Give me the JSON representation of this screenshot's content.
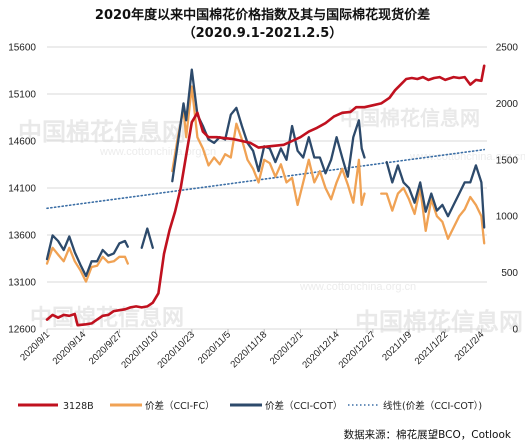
{
  "title_line1": "2020年度以来中国棉花价格指数及其与国际棉花现货价差",
  "title_line2": "（2020.9.1-2021.2.5）",
  "source_text": "数据来源：棉花展望BCO，Cotlook",
  "watermark": {
    "main": "中国棉花信息网",
    "url": "www.cottonchina.org.cn"
  },
  "colors": {
    "s3128b": "#c0111f",
    "cci_fc": "#f0a254",
    "cci_cot": "#2d4a6b",
    "trend": "#3b6ea5",
    "grid": "#d9d9d9"
  },
  "chart_data": {
    "type": "line",
    "x_tick_labels": [
      "2020/9/1",
      "2020/9/14",
      "2020/9/27",
      "2020/10/10",
      "2020/10/23",
      "2020/11/5",
      "2020/11/18",
      "2020/12/1",
      "2020/12/14",
      "2020/12/27",
      "2021/1/9",
      "2021/1/22",
      "2021/2/4"
    ],
    "x_tick_dates": [
      "2020-09-01",
      "2020-09-14",
      "2020-09-27",
      "2020-10-10",
      "2020-10-23",
      "2020-11-05",
      "2020-11-18",
      "2020-12-01",
      "2020-12-14",
      "2020-12-27",
      "2021-01-09",
      "2021-01-22",
      "2021-02-04"
    ],
    "x_range": [
      "2020-09-01",
      "2021-02-06"
    ],
    "y_left": {
      "range": [
        12600,
        15600
      ],
      "ticks": [
        "12600",
        "13100",
        "13600",
        "14100",
        "14600",
        "15100",
        "15600"
      ]
    },
    "y_right": {
      "range": [
        0,
        2500
      ],
      "ticks": [
        "0",
        "500",
        "1000",
        "1500",
        "2000",
        "2500"
      ]
    },
    "grid": true,
    "legend_position": "bottom",
    "series": [
      {
        "name": "3128B",
        "axis": "left",
        "key": "s3128b",
        "points": [
          [
            "2020-09-01",
            12700
          ],
          [
            "2020-09-03",
            12750
          ],
          [
            "2020-09-05",
            12720
          ],
          [
            "2020-09-07",
            12750
          ],
          [
            "2020-09-09",
            12740
          ],
          [
            "2020-09-11",
            12760
          ],
          [
            "2020-09-12",
            12640
          ],
          [
            "2020-09-15",
            12650
          ],
          [
            "2020-09-17",
            12660
          ],
          [
            "2020-09-19",
            12700
          ],
          [
            "2020-09-21",
            12740
          ],
          [
            "2020-09-23",
            12750
          ],
          [
            "2020-09-25",
            12790
          ],
          [
            "2020-09-27",
            12800
          ],
          [
            "2020-09-29",
            12810
          ],
          [
            "2020-10-01",
            12830
          ],
          [
            "2020-10-03",
            12840
          ],
          [
            "2020-10-05",
            12830
          ],
          [
            "2020-10-07",
            12840
          ],
          [
            "2020-10-09",
            12880
          ],
          [
            "2020-10-11",
            12980
          ],
          [
            "2020-10-13",
            13400
          ],
          [
            "2020-10-15",
            13650
          ],
          [
            "2020-10-17",
            13850
          ],
          [
            "2020-10-19",
            14100
          ],
          [
            "2020-10-21",
            14450
          ],
          [
            "2020-10-23",
            14800
          ],
          [
            "2020-10-25",
            14900
          ],
          [
            "2020-10-27",
            14700
          ],
          [
            "2020-10-29",
            14640
          ],
          [
            "2020-11-01",
            14640
          ],
          [
            "2020-11-04",
            14630
          ],
          [
            "2020-11-07",
            14620
          ],
          [
            "2020-11-10",
            14600
          ],
          [
            "2020-11-13",
            14580
          ],
          [
            "2020-11-16",
            14530
          ],
          [
            "2020-11-19",
            14540
          ],
          [
            "2020-11-22",
            14550
          ],
          [
            "2020-11-25",
            14560
          ],
          [
            "2020-11-28",
            14600
          ],
          [
            "2020-12-01",
            14640
          ],
          [
            "2020-12-04",
            14700
          ],
          [
            "2020-12-07",
            14740
          ],
          [
            "2020-12-10",
            14790
          ],
          [
            "2020-12-13",
            14860
          ],
          [
            "2020-12-16",
            14900
          ],
          [
            "2020-12-19",
            14910
          ],
          [
            "2020-12-21",
            14960
          ],
          [
            "2020-12-24",
            14960
          ],
          [
            "2020-12-27",
            14980
          ],
          [
            "2020-12-30",
            15000
          ],
          [
            "2021-01-02",
            15060
          ],
          [
            "2021-01-04",
            15140
          ],
          [
            "2021-01-06",
            15200
          ],
          [
            "2021-01-08",
            15260
          ],
          [
            "2021-01-10",
            15270
          ],
          [
            "2021-01-12",
            15260
          ],
          [
            "2021-01-14",
            15280
          ],
          [
            "2021-01-16",
            15250
          ],
          [
            "2021-01-18",
            15270
          ],
          [
            "2021-01-20",
            15280
          ],
          [
            "2021-01-22",
            15250
          ],
          [
            "2021-01-25",
            15280
          ],
          [
            "2021-01-27",
            15270
          ],
          [
            "2021-01-29",
            15280
          ],
          [
            "2021-01-31",
            15200
          ],
          [
            "2021-02-02",
            15250
          ],
          [
            "2021-02-04",
            15240
          ],
          [
            "2021-02-05",
            15400
          ]
        ]
      },
      {
        "name": "价差（CCI-FC）",
        "axis": "right",
        "key": "cci_fc",
        "segments": [
          [
            [
              "2020-09-01",
              580
            ],
            [
              "2020-09-03",
              720
            ],
            [
              "2020-09-05",
              660
            ],
            [
              "2020-09-07",
              600
            ],
            [
              "2020-09-09",
              720
            ],
            [
              "2020-09-11",
              600
            ],
            [
              "2020-09-13",
              520
            ],
            [
              "2020-09-15",
              420
            ],
            [
              "2020-09-17",
              550
            ],
            [
              "2020-09-19",
              560
            ],
            [
              "2020-09-21",
              640
            ],
            [
              "2020-09-23",
              590
            ],
            [
              "2020-09-25",
              600
            ],
            [
              "2020-09-27",
              640
            ],
            [
              "2020-09-29",
              640
            ],
            [
              "2020-09-30",
              580
            ]
          ],
          [
            [
              "2020-10-16",
              1400
            ],
            [
              "2020-10-18",
              1700
            ],
            [
              "2020-10-20",
              1950
            ],
            [
              "2020-10-21",
              1700
            ],
            [
              "2020-10-23",
              2150
            ],
            [
              "2020-10-25",
              1700
            ],
            [
              "2020-10-27",
              1600
            ],
            [
              "2020-10-29",
              1450
            ],
            [
              "2020-10-31",
              1520
            ],
            [
              "2020-11-02",
              1460
            ],
            [
              "2020-11-04",
              1550
            ],
            [
              "2020-11-06",
              1520
            ],
            [
              "2020-11-08",
              1820
            ],
            [
              "2020-11-10",
              1680
            ],
            [
              "2020-11-12",
              1500
            ],
            [
              "2020-11-14",
              1420
            ],
            [
              "2020-11-16",
              1300
            ],
            [
              "2020-11-18",
              1500
            ],
            [
              "2020-11-20",
              1470
            ],
            [
              "2020-11-22",
              1350
            ],
            [
              "2020-11-24",
              1460
            ],
            [
              "2020-11-26",
              1300
            ],
            [
              "2020-11-28",
              1340
            ],
            [
              "2020-11-30",
              1100
            ],
            [
              "2020-12-02",
              1300
            ],
            [
              "2020-12-04",
              1500
            ],
            [
              "2020-12-06",
              1300
            ],
            [
              "2020-12-08",
              1400
            ],
            [
              "2020-12-10",
              1250
            ],
            [
              "2020-12-12",
              1150
            ],
            [
              "2020-12-14",
              1300
            ],
            [
              "2020-12-16",
              1420
            ],
            [
              "2020-12-18",
              1280
            ],
            [
              "2020-12-20",
              1120
            ],
            [
              "2020-12-22",
              1500
            ],
            [
              "2020-12-23",
              1100
            ],
            [
              "2020-12-24",
              1200
            ]
          ],
          [
            [
              "2020-12-30",
              1200
            ],
            [
              "2021-01-01",
              1200
            ],
            [
              "2021-01-03",
              1050
            ],
            [
              "2021-01-05",
              1200
            ],
            [
              "2021-01-07",
              1250
            ],
            [
              "2021-01-09",
              1150
            ],
            [
              "2021-01-11",
              1020
            ],
            [
              "2021-01-13",
              1250
            ],
            [
              "2021-01-15",
              870
            ],
            [
              "2021-01-17",
              1150
            ],
            [
              "2021-01-19",
              1000
            ],
            [
              "2021-01-21",
              950
            ],
            [
              "2021-01-23",
              800
            ],
            [
              "2021-01-25",
              900
            ],
            [
              "2021-01-27",
              1000
            ],
            [
              "2021-01-29",
              1060
            ],
            [
              "2021-01-31",
              1170
            ],
            [
              "2021-02-02",
              1100
            ],
            [
              "2021-02-04",
              1000
            ],
            [
              "2021-02-05",
              760
            ]
          ]
        ]
      },
      {
        "name": "价差（CCI-COT）",
        "axis": "right",
        "key": "cci_cot",
        "segments": [
          [
            [
              "2020-09-01",
              620
            ],
            [
              "2020-09-03",
              830
            ],
            [
              "2020-09-05",
              780
            ],
            [
              "2020-09-07",
              700
            ],
            [
              "2020-09-09",
              820
            ],
            [
              "2020-09-11",
              680
            ],
            [
              "2020-09-13",
              570
            ],
            [
              "2020-09-15",
              470
            ],
            [
              "2020-09-17",
              600
            ],
            [
              "2020-09-19",
              600
            ],
            [
              "2020-09-21",
              700
            ],
            [
              "2020-09-23",
              650
            ],
            [
              "2020-09-25",
              670
            ],
            [
              "2020-09-27",
              760
            ],
            [
              "2020-09-29",
              780
            ],
            [
              "2020-09-30",
              730
            ]
          ],
          [
            [
              "2020-10-05",
              720
            ],
            [
              "2020-10-07",
              890
            ],
            [
              "2020-10-09",
              720
            ]
          ],
          [
            [
              "2020-10-16",
              1310
            ],
            [
              "2020-10-18",
              1650
            ],
            [
              "2020-10-20",
              2000
            ],
            [
              "2020-10-21",
              1850
            ],
            [
              "2020-10-23",
              2300
            ],
            [
              "2020-10-25",
              1900
            ],
            [
              "2020-10-27",
              1800
            ],
            [
              "2020-10-29",
              1680
            ],
            [
              "2020-10-31",
              1650
            ],
            [
              "2020-11-02",
              1700
            ],
            [
              "2020-11-04",
              1680
            ],
            [
              "2020-11-06",
              1900
            ],
            [
              "2020-11-08",
              1960
            ],
            [
              "2020-11-10",
              1800
            ],
            [
              "2020-11-12",
              1650
            ],
            [
              "2020-11-14",
              1580
            ],
            [
              "2020-11-16",
              1400
            ],
            [
              "2020-11-18",
              1620
            ],
            [
              "2020-11-20",
              1600
            ],
            [
              "2020-11-22",
              1480
            ],
            [
              "2020-11-24",
              1600
            ],
            [
              "2020-11-26",
              1500
            ],
            [
              "2020-11-28",
              1800
            ],
            [
              "2020-11-30",
              1580
            ],
            [
              "2020-12-02",
              1520
            ],
            [
              "2020-12-04",
              1700
            ],
            [
              "2020-12-06",
              1520
            ],
            [
              "2020-12-08",
              1520
            ],
            [
              "2020-12-10",
              1380
            ],
            [
              "2020-12-12",
              1500
            ],
            [
              "2020-12-14",
              1700
            ],
            [
              "2020-12-16",
              1520
            ],
            [
              "2020-12-18",
              1350
            ],
            [
              "2020-12-20",
              1700
            ],
            [
              "2020-12-22",
              1850
            ],
            [
              "2020-12-23",
              1600
            ],
            [
              "2020-12-24",
              1520
            ]
          ],
          [
            [
              "2021-01-01",
              1480
            ],
            [
              "2021-01-03",
              1300
            ],
            [
              "2021-01-05",
              1450
            ],
            [
              "2021-01-07",
              1300
            ],
            [
              "2021-01-09",
              1250
            ],
            [
              "2021-01-11",
              1120
            ],
            [
              "2021-01-13",
              1300
            ],
            [
              "2021-01-15",
              1040
            ],
            [
              "2021-01-17",
              1200
            ],
            [
              "2021-01-19",
              1050
            ],
            [
              "2021-01-21",
              1100
            ],
            [
              "2021-01-23",
              1000
            ],
            [
              "2021-01-25",
              1100
            ],
            [
              "2021-01-27",
              1200
            ],
            [
              "2021-01-29",
              1300
            ],
            [
              "2021-01-31",
              1300
            ],
            [
              "2021-02-02",
              1450
            ],
            [
              "2021-02-04",
              1300
            ],
            [
              "2021-02-05",
              900
            ]
          ]
        ]
      },
      {
        "name": "线性(价差（CCI-COT）)",
        "axis": "right",
        "key": "trend",
        "style": "dotted",
        "points": [
          [
            "2020-09-01",
            1070
          ],
          [
            "2021-02-05",
            1590
          ]
        ]
      }
    ]
  }
}
